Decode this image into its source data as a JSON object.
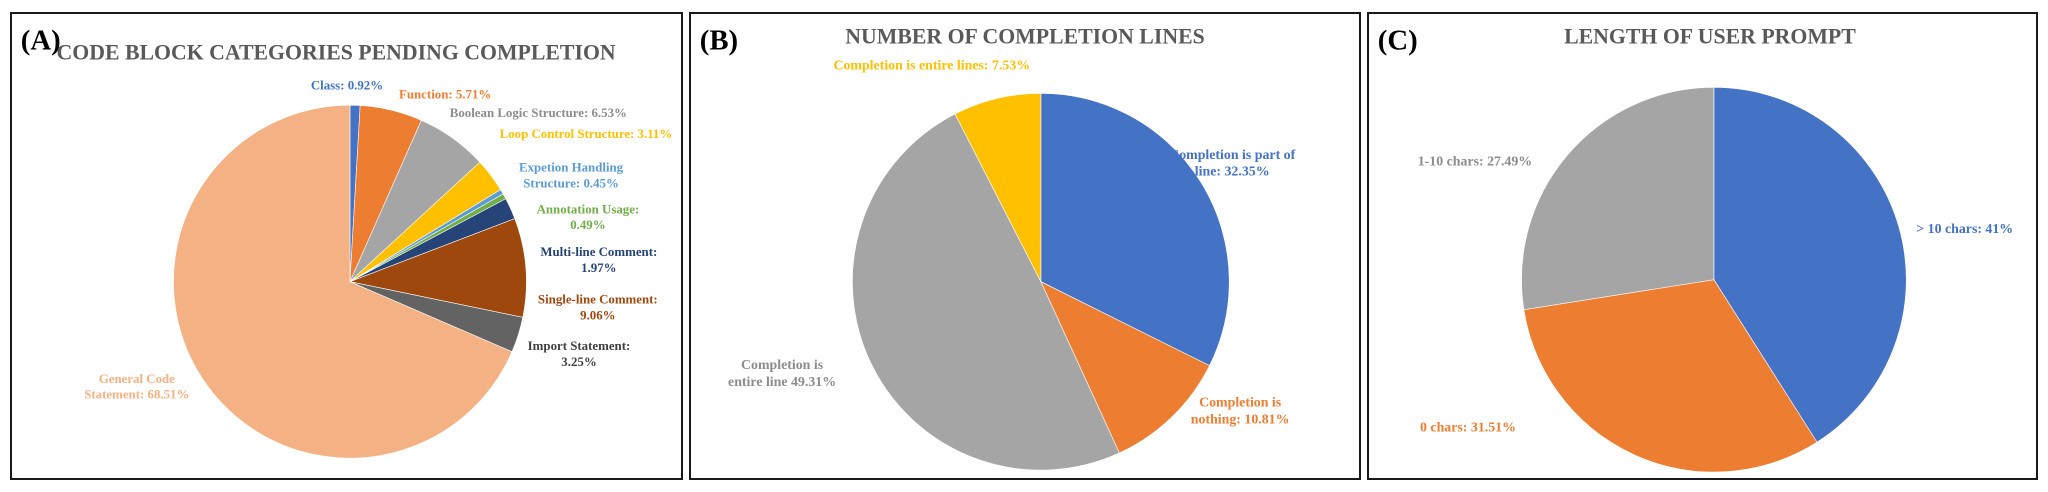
{
  "panels": [
    {
      "id": "a",
      "label": "(A)"
    },
    {
      "id": "b",
      "label": "(B)"
    },
    {
      "id": "c",
      "label": "(C)"
    }
  ],
  "chart_data": [
    {
      "type": "pie",
      "title": "CODE BLOCK CATEGORIES PENDING COMPLETION",
      "slices": [
        {
          "name": "Class",
          "value": 0.92,
          "label_lines": [
            "Class: 0.92%"
          ],
          "color": "#4472C4"
        },
        {
          "name": "Function",
          "value": 5.71,
          "label_lines": [
            "Function: 5.71%"
          ],
          "color": "#ED7D31"
        },
        {
          "name": "Boolean Logic Structure",
          "value": 6.53,
          "label_lines": [
            "Boolean Logic Structure: 6.53%"
          ],
          "color": "#A5A5A5"
        },
        {
          "name": "Loop Control Structure",
          "value": 3.11,
          "label_lines": [
            "Loop Control Structure: 3.11%"
          ],
          "color": "#FFC000"
        },
        {
          "name": "Expetion Handling Structure",
          "value": 0.45,
          "label_lines": [
            "Expetion Handling",
            "Structure: 0.45%"
          ],
          "color": "#5B9BD5"
        },
        {
          "name": "Annotation Usage",
          "value": 0.49,
          "label_lines": [
            "Annotation Usage:",
            "0.49%"
          ],
          "color": "#70AD47"
        },
        {
          "name": "Multi-line Comment",
          "value": 1.97,
          "label_lines": [
            "Multi-line Comment:",
            "1.97%"
          ],
          "color": "#264478"
        },
        {
          "name": "Single-line Comment",
          "value": 9.06,
          "label_lines": [
            "Single-line Comment:",
            "9.06%"
          ],
          "color": "#9E480E"
        },
        {
          "name": "Import Statement",
          "value": 3.25,
          "label_lines": [
            "Import Statement:",
            "3.25%"
          ],
          "color": "#636363"
        },
        {
          "name": "General Code Statement",
          "value": 68.51,
          "label_lines": [
            "General Code",
            "Statement: 68.51%"
          ],
          "color": "#F4B183"
        }
      ],
      "legend": "none"
    },
    {
      "type": "pie",
      "title": "NUMBER OF COMPLETION LINES",
      "slices": [
        {
          "name": "Completion is part of line",
          "value": 32.35,
          "label_lines": [
            "Completion is part of",
            "line: 32.35%"
          ],
          "color": "#4472C4"
        },
        {
          "name": "Completion is nothing",
          "value": 10.81,
          "label_lines": [
            "Completion is",
            "nothing: 10.81%"
          ],
          "color": "#ED7D31"
        },
        {
          "name": "Completion is entire line",
          "value": 49.31,
          "label_lines": [
            "Completion is",
            "entire line 49.31%"
          ],
          "color": "#A5A5A5"
        },
        {
          "name": "Completion is entire lines",
          "value": 7.53,
          "label_lines": [
            "Completion is entire lines: 7.53%"
          ],
          "color": "#FFC000"
        }
      ],
      "legend": "none"
    },
    {
      "type": "pie",
      "title": "LENGTH OF USER PROMPT",
      "slices": [
        {
          "name": "> 10 chars",
          "value": 41,
          "label_lines": [
            "> 10 chars: 41%"
          ],
          "color": "#4472C4"
        },
        {
          "name": "0 chars",
          "value": 31.51,
          "label_lines": [
            "0 chars: 31.51%"
          ],
          "color": "#ED7D31"
        },
        {
          "name": "1-10 chars",
          "value": 27.49,
          "label_lines": [
            "1-10 chars: 27.49%"
          ],
          "color": "#A5A5A5"
        }
      ],
      "legend": "none"
    }
  ]
}
